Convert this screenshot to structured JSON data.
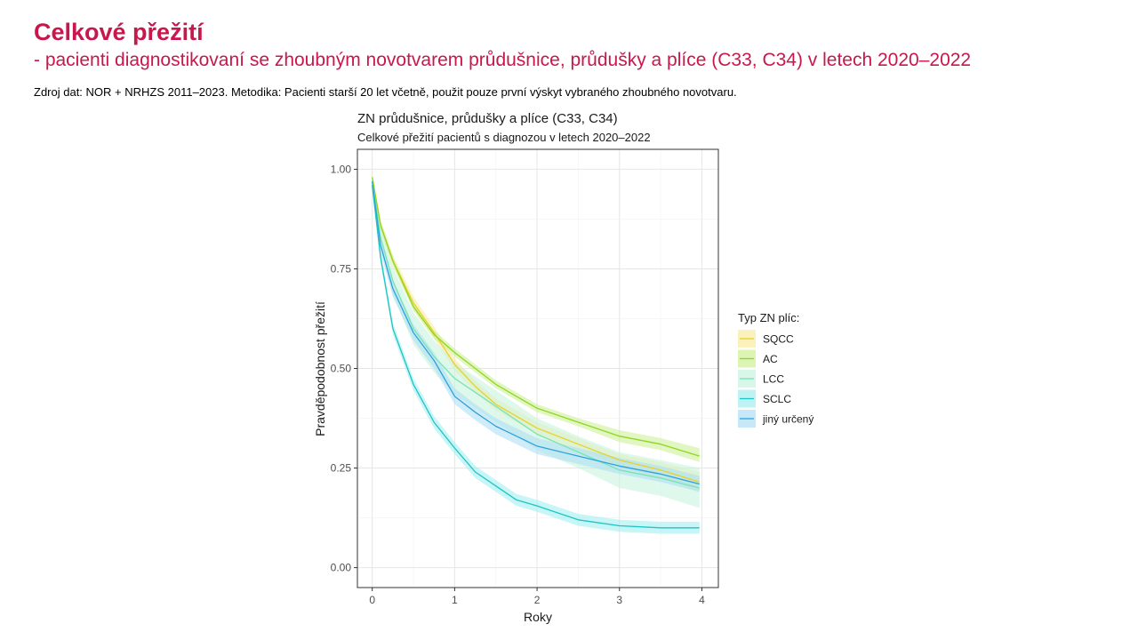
{
  "slide": {
    "title": "Celkové přežití",
    "subtitle": "- pacienti diagnostikovaní se zhoubným novotvarem průdušnice, průdušky a plíce (C33, C34) v letech 2020–2022",
    "source": "Zdroj dat: NOR + NRHZS 2011–2023. Metodika: Pacienti starší 20 let včetně, použit pouze první výskyt vybraného zhoubného novotvaru."
  },
  "chart_data": {
    "type": "line",
    "title": "ZN průdušnice, průdušky a plíce (C33, C34)",
    "subtitle": "Celkové přežití pacientů s diagnozou v letech 2020–2022",
    "xlabel": "Roky",
    "ylabel": "Pravděpodobnost přežití",
    "xlim": [
      -0.18,
      4.2
    ],
    "ylim": [
      -0.05,
      1.05
    ],
    "x_ticks": [
      0,
      1,
      2,
      3,
      4
    ],
    "x_tick_labels": [
      "0",
      "1",
      "2",
      "3",
      "4"
    ],
    "y_ticks": [
      0,
      0.25,
      0.5,
      0.75,
      1
    ],
    "y_tick_labels": [
      "0.00",
      "0.25",
      "0.50",
      "0.75",
      "1.00"
    ],
    "grid": true,
    "legend_title": "Typ ZN plíc:",
    "legend_position": "right",
    "series": [
      {
        "name": "SQCC",
        "color": "#e6d22a",
        "band_color": "#f7ea9a",
        "x": [
          0,
          0.1,
          0.25,
          0.5,
          0.75,
          1.0,
          1.25,
          1.5,
          1.75,
          2.0,
          2.5,
          3.0,
          3.5,
          3.97
        ],
        "y": [
          0.98,
          0.86,
          0.77,
          0.665,
          0.59,
          0.51,
          0.455,
          0.41,
          0.38,
          0.35,
          0.31,
          0.27,
          0.245,
          0.215
        ],
        "upper": [
          0.99,
          0.875,
          0.785,
          0.68,
          0.605,
          0.525,
          0.47,
          0.425,
          0.395,
          0.365,
          0.325,
          0.285,
          0.265,
          0.24
        ],
        "lower": [
          0.97,
          0.845,
          0.755,
          0.65,
          0.575,
          0.495,
          0.44,
          0.395,
          0.365,
          0.335,
          0.295,
          0.255,
          0.225,
          0.19
        ]
      },
      {
        "name": "AC",
        "color": "#8ed620",
        "band_color": "#c9ef8e",
        "x": [
          0,
          0.1,
          0.25,
          0.5,
          0.75,
          1.0,
          1.25,
          1.5,
          1.75,
          2.0,
          2.5,
          3.0,
          3.5,
          3.97
        ],
        "y": [
          0.98,
          0.86,
          0.77,
          0.655,
          0.585,
          0.54,
          0.5,
          0.46,
          0.43,
          0.4,
          0.365,
          0.33,
          0.31,
          0.28
        ],
        "upper": [
          0.99,
          0.87,
          0.78,
          0.665,
          0.595,
          0.55,
          0.51,
          0.47,
          0.44,
          0.41,
          0.375,
          0.345,
          0.325,
          0.3
        ],
        "lower": [
          0.97,
          0.85,
          0.76,
          0.645,
          0.575,
          0.53,
          0.49,
          0.45,
          0.42,
          0.39,
          0.355,
          0.315,
          0.295,
          0.265
        ]
      },
      {
        "name": "LCC",
        "color": "#79e3b2",
        "band_color": "#c5f2dd",
        "x": [
          0,
          0.1,
          0.25,
          0.5,
          0.75,
          1.0,
          1.25,
          1.5,
          1.75,
          2.0,
          2.5,
          3.0,
          3.5,
          3.97
        ],
        "y": [
          0.97,
          0.83,
          0.72,
          0.6,
          0.53,
          0.475,
          0.44,
          0.405,
          0.37,
          0.335,
          0.29,
          0.245,
          0.225,
          0.2
        ],
        "upper": [
          0.985,
          0.86,
          0.755,
          0.64,
          0.57,
          0.515,
          0.48,
          0.445,
          0.41,
          0.375,
          0.33,
          0.29,
          0.27,
          0.25
        ],
        "lower": [
          0.955,
          0.8,
          0.685,
          0.56,
          0.49,
          0.435,
          0.4,
          0.365,
          0.33,
          0.295,
          0.25,
          0.2,
          0.18,
          0.15
        ]
      },
      {
        "name": "SCLC",
        "color": "#1fc4c4",
        "band_color": "#9becec",
        "x": [
          0,
          0.1,
          0.25,
          0.5,
          0.75,
          1.0,
          1.25,
          1.5,
          1.75,
          2.0,
          2.5,
          3.0,
          3.5,
          3.97
        ],
        "y": [
          0.96,
          0.78,
          0.6,
          0.46,
          0.365,
          0.3,
          0.24,
          0.205,
          0.17,
          0.155,
          0.12,
          0.105,
          0.1,
          0.1
        ],
        "upper": [
          0.975,
          0.795,
          0.615,
          0.475,
          0.38,
          0.315,
          0.255,
          0.22,
          0.185,
          0.17,
          0.135,
          0.12,
          0.115,
          0.115
        ],
        "lower": [
          0.945,
          0.765,
          0.585,
          0.445,
          0.35,
          0.285,
          0.225,
          0.19,
          0.155,
          0.14,
          0.105,
          0.09,
          0.085,
          0.085
        ]
      },
      {
        "name": "jiný určený",
        "color": "#2ba3dc",
        "band_color": "#a9dcf4",
        "x": [
          0,
          0.1,
          0.25,
          0.5,
          0.75,
          1.0,
          1.25,
          1.5,
          1.75,
          2.0,
          2.5,
          3.0,
          3.5,
          3.97
        ],
        "y": [
          0.97,
          0.81,
          0.7,
          0.59,
          0.52,
          0.43,
          0.39,
          0.355,
          0.33,
          0.305,
          0.28,
          0.255,
          0.235,
          0.21
        ],
        "upper": [
          0.98,
          0.83,
          0.72,
          0.61,
          0.54,
          0.45,
          0.41,
          0.375,
          0.35,
          0.325,
          0.3,
          0.275,
          0.255,
          0.23
        ],
        "lower": [
          0.96,
          0.79,
          0.68,
          0.57,
          0.5,
          0.41,
          0.37,
          0.335,
          0.31,
          0.285,
          0.26,
          0.235,
          0.215,
          0.19
        ]
      }
    ]
  }
}
